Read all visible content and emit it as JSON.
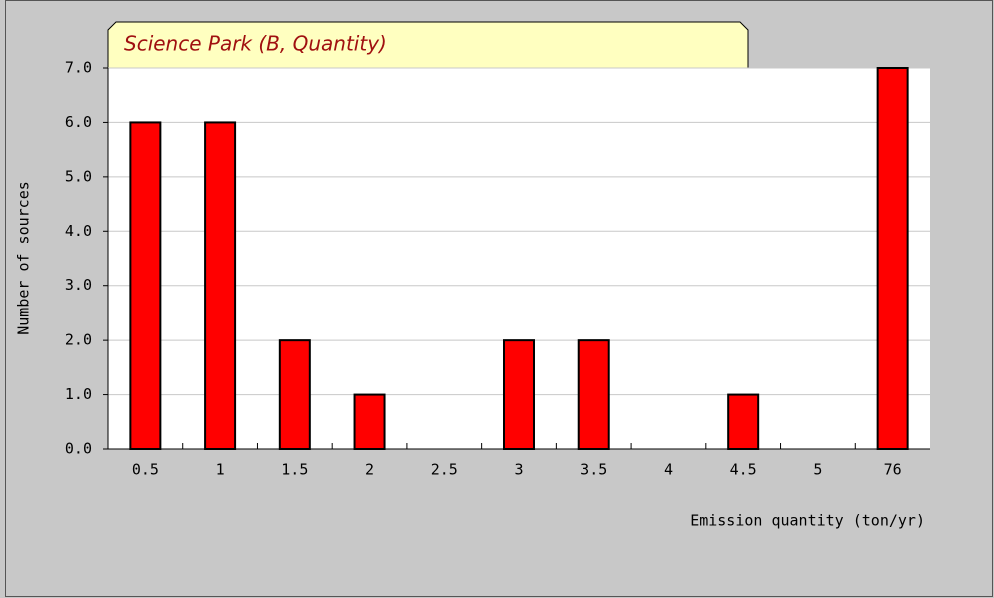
{
  "chart_data": {
    "type": "bar",
    "title": "Science Park (B, Quantity)",
    "x_label": "Emission quantity (ton/yr)",
    "y_label": "Number of sources",
    "categories": [
      "0.5",
      "1",
      "1.5",
      "2",
      "2.5",
      "3",
      "3.5",
      "4",
      "4.5",
      "5",
      "76"
    ],
    "values": [
      6,
      6,
      2,
      1,
      0,
      2,
      2,
      0,
      1,
      0,
      7
    ],
    "color": "#ff0000",
    "ylim": [
      0,
      7
    ],
    "yticks": [
      {
        "value": 0,
        "label": "0.0"
      },
      {
        "value": 1,
        "label": "1.0"
      },
      {
        "value": 2,
        "label": "2.0"
      },
      {
        "value": 3,
        "label": "3.0"
      },
      {
        "value": 4,
        "label": "4.0"
      },
      {
        "value": 5,
        "label": "5.0"
      },
      {
        "value": 6,
        "label": "6.0"
      },
      {
        "value": 7,
        "label": "7.0"
      }
    ],
    "grid": true
  }
}
